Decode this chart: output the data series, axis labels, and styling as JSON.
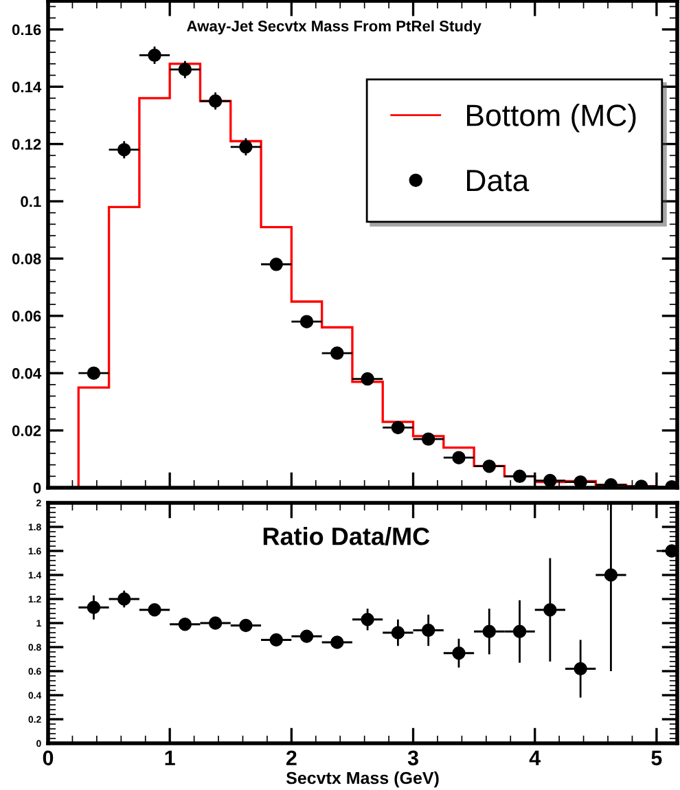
{
  "chart_data": [
    {
      "type": "histogram",
      "title": "Away-Jet Secvtx Mass From PtRel Study",
      "bins": [
        0.25,
        0.5,
        0.75,
        1.0,
        1.25,
        1.5,
        1.75,
        2.0,
        2.25,
        2.5,
        2.75,
        3.0,
        3.25,
        3.5,
        3.75,
        4.0,
        4.25,
        4.5,
        4.75,
        5.0
      ],
      "series": [
        {
          "name": "Bottom (MC)",
          "type": "histogram",
          "color": "#ff0000",
          "values": [
            0.035,
            0.098,
            0.136,
            0.148,
            0.135,
            0.121,
            0.091,
            0.065,
            0.056,
            0.037,
            0.023,
            0.018,
            0.014,
            0.0076,
            0.004,
            0.002,
            0.0023,
            0.001,
            0.0005
          ]
        },
        {
          "name": "Data",
          "type": "scatter",
          "color": "#000000",
          "marker": "circle",
          "x": [
            0.375,
            0.625,
            0.875,
            1.125,
            1.375,
            1.625,
            1.875,
            2.125,
            2.375,
            2.625,
            2.875,
            3.125,
            3.375,
            3.625,
            3.875,
            4.125,
            4.375,
            4.625,
            4.875,
            5.125
          ],
          "values": [
            0.04,
            0.118,
            0.151,
            0.146,
            0.135,
            0.119,
            0.078,
            0.058,
            0.047,
            0.038,
            0.021,
            0.017,
            0.0105,
            0.0075,
            0.004,
            0.0025,
            0.002,
            0.001,
            0.0005,
            0.0003
          ],
          "errors": [
            0.002,
            0.003,
            0.003,
            0.003,
            0.003,
            0.003,
            0.002,
            0.002,
            0.002,
            0.002,
            0.001,
            0.001,
            0.001,
            0.001,
            0.001,
            0.001,
            0.001,
            0.001,
            0.0005,
            0.0003
          ],
          "xerrors": [
            0.125,
            0.125,
            0.125,
            0.125,
            0.125,
            0.125,
            0.125,
            0.125,
            0.125,
            0.125,
            0.125,
            0.125,
            0.125,
            0.125,
            0.125,
            0.125,
            0.125,
            0.125,
            0.125,
            [
              5.0,
              5.17
            ]
          ]
        }
      ],
      "xlim": [
        0,
        5.17
      ],
      "ylim": [
        0,
        0.17
      ],
      "yticks": [
        0,
        0.02,
        0.04,
        0.06,
        0.08,
        0.1,
        0.12,
        0.14,
        0.16
      ],
      "xticks": [
        0,
        1,
        2,
        3,
        4,
        5
      ],
      "tick_labels": "y",
      "legend": "top right",
      "grid": false
    },
    {
      "type": "scatter",
      "title": "Ratio Data/MC",
      "xlabel": "Secvtx Mass (GeV)",
      "series": [
        {
          "color": "#000000",
          "marker": "circle",
          "x": [
            0.375,
            0.625,
            0.875,
            1.125,
            1.375,
            1.625,
            1.875,
            2.125,
            2.375,
            2.625,
            2.875,
            3.125,
            3.375,
            3.625,
            3.875,
            4.125,
            4.375,
            4.625,
            5.125
          ],
          "values": [
            1.13,
            1.2,
            1.11,
            0.99,
            1.0,
            0.98,
            0.86,
            0.89,
            0.84,
            1.03,
            0.92,
            0.94,
            0.75,
            0.93,
            0.93,
            1.11,
            0.62,
            1.4,
            1.6
          ],
          "errors": [
            0.1,
            0.07,
            0.04,
            0.03,
            0.03,
            0.03,
            0.03,
            0.04,
            0.05,
            0.09,
            0.11,
            0.13,
            0.12,
            0.19,
            0.26,
            0.43,
            0.24,
            [
              0.6,
              2.0
            ],
            null
          ],
          "xerrors": [
            0.125,
            0.125,
            0.125,
            0.125,
            0.125,
            0.125,
            0.125,
            0.125,
            0.125,
            0.125,
            0.125,
            0.125,
            0.125,
            0.125,
            0.125,
            0.125,
            0.125,
            0.125,
            [
              5.0,
              5.17
            ]
          ]
        }
      ],
      "xlim": [
        0,
        5.17
      ],
      "ylim": [
        0,
        2
      ],
      "xticks": [
        0,
        1,
        2,
        3,
        4,
        5
      ],
      "yticks": [
        0,
        0.2,
        0.4,
        0.6,
        0.8,
        1,
        1.2,
        1.4,
        1.6,
        1.8,
        2
      ],
      "grid": false
    }
  ]
}
